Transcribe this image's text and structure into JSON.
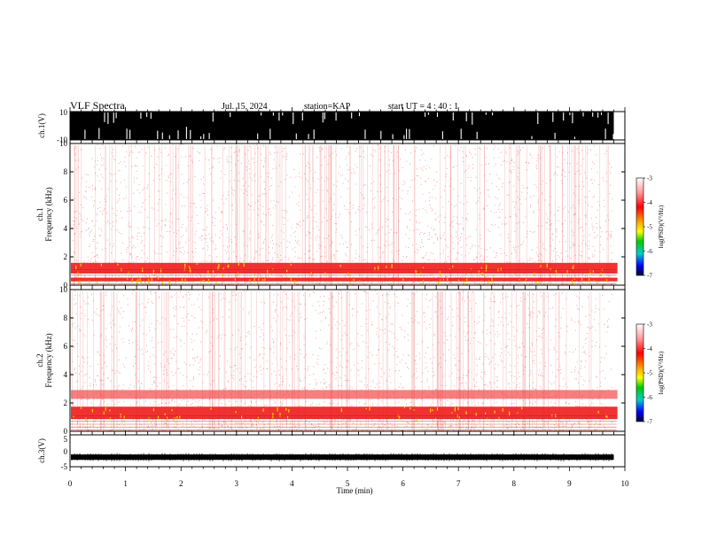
{
  "header": {
    "title": "VLF Spectra",
    "date": "Jul. 15, 2024",
    "station": "station=KAP",
    "start": "start UT =  4 : 40 : 1"
  },
  "chart_data": [
    {
      "name": "ch1-waveform",
      "type": "area",
      "ylabel": "ch.1(V)",
      "ylim": [
        -10,
        10
      ],
      "yticks": [
        "10",
        "-10"
      ],
      "xlim": [
        0,
        10
      ],
      "data_xmax": 9.8,
      "description_fill": "saturated black waveform"
    },
    {
      "name": "ch1-spectrogram",
      "type": "heatmap",
      "ylabel_line1": "ch.1",
      "ylabel_line2": "Frequency (kHz)",
      "ylim": [
        0,
        10
      ],
      "yticks": [
        "0",
        "2",
        "4",
        "6",
        "8",
        "10"
      ],
      "xlim": [
        0,
        10
      ],
      "colorbar": {
        "label": "log(PSD)(V²/Hz)",
        "ticks": [
          "-3",
          "-4",
          "-5",
          "-6",
          "-7"
        ],
        "range": [
          -7,
          -3
        ]
      },
      "bands": [
        {
          "freq_khz": 1.2,
          "level": "high"
        },
        {
          "freq_khz": 0.4,
          "level": "high"
        }
      ]
    },
    {
      "name": "ch2-spectrogram",
      "type": "heatmap",
      "ylabel_line1": "ch.2",
      "ylabel_line2": "Frequency (kHz)",
      "ylim": [
        0,
        10
      ],
      "yticks": [
        "0",
        "2",
        "4",
        "6",
        "8",
        "10"
      ],
      "xlim": [
        0,
        10
      ],
      "colorbar": {
        "label": "log(PSD)(V²/Hz)",
        "ticks": [
          "-3",
          "-4",
          "-5",
          "-6",
          "-7"
        ],
        "range": [
          -7,
          -3
        ]
      },
      "bands": [
        {
          "freq_khz": 1.3,
          "level": "high"
        },
        {
          "freq_khz": 2.6,
          "level": "medium"
        }
      ]
    },
    {
      "name": "ch3-waveform",
      "type": "line",
      "ylabel": "ch.3(V)",
      "ylim": [
        -5,
        5
      ],
      "yticks": [
        "5",
        "0",
        "-5"
      ],
      "xlim": [
        0,
        10
      ],
      "level": -2,
      "xlabel": "Time (min)",
      "xticks": [
        "0",
        "1",
        "2",
        "3",
        "4",
        "5",
        "6",
        "7",
        "8",
        "9",
        "10"
      ]
    }
  ]
}
